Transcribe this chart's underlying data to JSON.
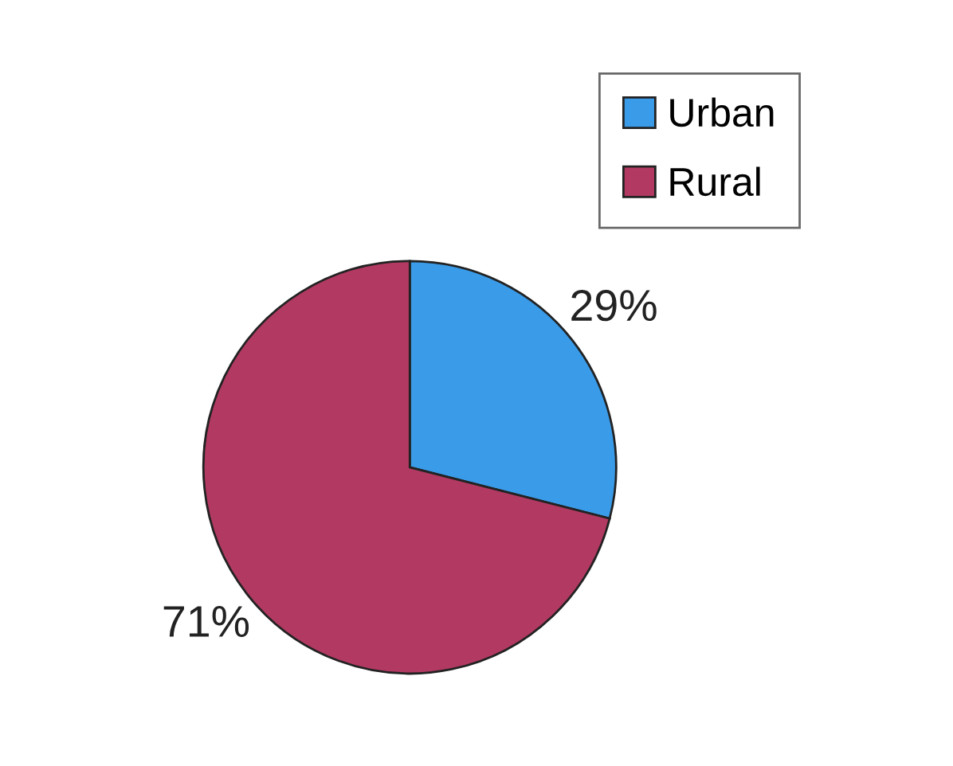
{
  "chart_data": {
    "type": "pie",
    "categories": [
      "Urban",
      "Rural"
    ],
    "series": [
      {
        "values": [
          29,
          71
        ],
        "colors": [
          "#3a9be8",
          "#b23a62"
        ]
      }
    ],
    "value_labels": [
      "29%",
      "71%"
    ],
    "legend": "top right"
  }
}
